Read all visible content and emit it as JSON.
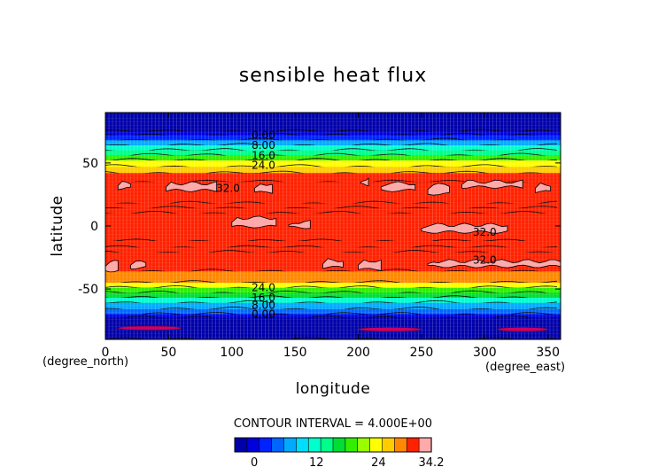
{
  "chart_data": {
    "type": "heatmap",
    "title": "sensible heat flux",
    "xlabel": "longitude",
    "ylabel": "latitude",
    "x_unit": "(degree_east)",
    "y_unit": "(degree_north)",
    "xlim": [
      0,
      360
    ],
    "ylim": [
      -90,
      90
    ],
    "x_ticks": [
      0,
      50,
      100,
      150,
      200,
      250,
      300,
      350
    ],
    "y_ticks": [
      -50,
      0,
      50
    ],
    "contour_interval_text": "CONTOUR INTERVAL = 4.000E+00",
    "colorbar": {
      "min": -3.8,
      "max": 34.2,
      "tick_values": [
        0,
        12,
        24,
        34.2
      ],
      "tick_labels": [
        "0",
        "12",
        "24",
        "34.2"
      ],
      "colors": [
        "#0000aa",
        "#0000dd",
        "#0022ff",
        "#0066ff",
        "#00aaff",
        "#00ddff",
        "#00ffcc",
        "#00ff88",
        "#00dd33",
        "#33ee00",
        "#99ff00",
        "#ffff00",
        "#ffcc00",
        "#ff8800",
        "#ff2200",
        "#ffaaaa"
      ]
    },
    "zonal_profile": [
      {
        "lat": 90,
        "value": -3.5
      },
      {
        "lat": 75,
        "value": -3.0
      },
      {
        "lat": 72,
        "value": 0.5
      },
      {
        "lat": 68,
        "value": 4.5
      },
      {
        "lat": 64,
        "value": 8.5
      },
      {
        "lat": 60,
        "value": 12.5
      },
      {
        "lat": 56,
        "value": 17.5
      },
      {
        "lat": 52,
        "value": 21.5
      },
      {
        "lat": 47,
        "value": 24.5
      },
      {
        "lat": 42,
        "value": 29.0
      },
      {
        "lat": 35,
        "value": 31.5
      },
      {
        "lat": 18,
        "value": 31.0
      },
      {
        "lat": 14,
        "value": 29.5
      },
      {
        "lat": 10,
        "value": 30.5
      },
      {
        "lat": -12,
        "value": 30.5
      },
      {
        "lat": -17,
        "value": 29.5
      },
      {
        "lat": -21,
        "value": 30.5
      },
      {
        "lat": -36,
        "value": 30.5
      },
      {
        "lat": -45,
        "value": 25.5
      },
      {
        "lat": -49,
        "value": 21.5
      },
      {
        "lat": -53,
        "value": 17.5
      },
      {
        "lat": -57,
        "value": 13.5
      },
      {
        "lat": -61,
        "value": 9.5
      },
      {
        "lat": -66,
        "value": 5.5
      },
      {
        "lat": -70,
        "value": 1.5
      },
      {
        "lat": -73,
        "value": -1.0
      },
      {
        "lat": -90,
        "value": -3.5
      }
    ],
    "contour_labels": [
      {
        "text": "0.00",
        "lon": 125,
        "lat": 72
      },
      {
        "text": "8.00",
        "lon": 125,
        "lat": 64
      },
      {
        "text": "16.0",
        "lon": 125,
        "lat": 56
      },
      {
        "text": "24.0",
        "lon": 125,
        "lat": 48
      },
      {
        "text": "32.0",
        "lon": 97,
        "lat": 30
      },
      {
        "text": "32.0",
        "lon": 300,
        "lat": -5
      },
      {
        "text": "32.0",
        "lon": 300,
        "lat": -27
      },
      {
        "text": "24.0",
        "lon": 125,
        "lat": -49
      },
      {
        "text": "16.0",
        "lon": 125,
        "lat": -57
      },
      {
        "text": "8.00",
        "lon": 125,
        "lat": -63
      },
      {
        "text": "0.00",
        "lon": 125,
        "lat": -70
      }
    ],
    "patches_above_32": [
      {
        "lon1": 10,
        "lon2": 20,
        "lat": 32
      },
      {
        "lon1": 48,
        "lon2": 88,
        "lat": 31
      },
      {
        "lon1": 118,
        "lon2": 132,
        "lat": 30
      },
      {
        "lon1": 202,
        "lon2": 208,
        "lat": 35
      },
      {
        "lon1": 218,
        "lon2": 245,
        "lat": 31
      },
      {
        "lon1": 255,
        "lon2": 272,
        "lat": 29
      },
      {
        "lon1": 282,
        "lon2": 330,
        "lat": 33
      },
      {
        "lon1": 340,
        "lon2": 352,
        "lat": 30
      },
      {
        "lon1": 100,
        "lon2": 135,
        "lat": 3
      },
      {
        "lon1": 145,
        "lon2": 162,
        "lat": 1
      },
      {
        "lon1": 250,
        "lon2": 318,
        "lat": -2
      },
      {
        "lon1": 0,
        "lon2": 10,
        "lat": -32
      },
      {
        "lon1": 20,
        "lon2": 32,
        "lat": -31
      },
      {
        "lon1": 172,
        "lon2": 188,
        "lat": -30
      },
      {
        "lon1": 200,
        "lon2": 218,
        "lat": -31
      },
      {
        "lon1": 255,
        "lon2": 360,
        "lat": -30
      }
    ],
    "cold_spots": [
      {
        "lon1": 10,
        "lon2": 60,
        "lat": -81
      },
      {
        "lon1": 200,
        "lon2": 250,
        "lat": -82
      },
      {
        "lon1": 310,
        "lon2": 350,
        "lat": -82
      }
    ]
  }
}
